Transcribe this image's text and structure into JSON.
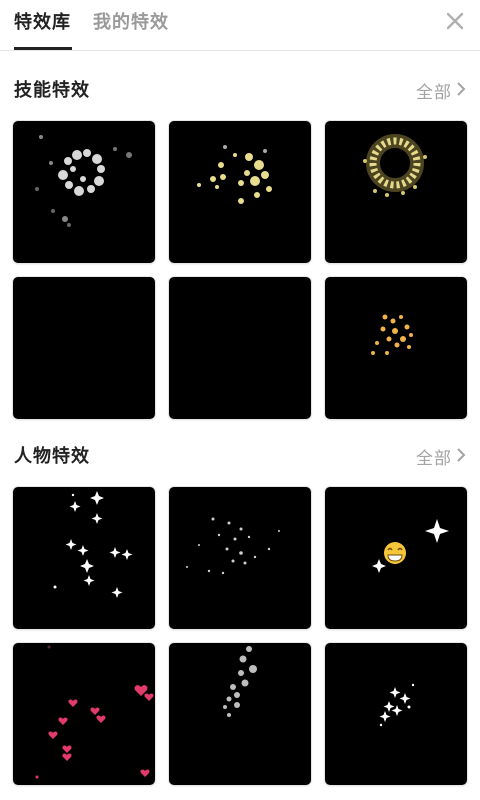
{
  "tabs": [
    {
      "label": "特效库",
      "active": true
    },
    {
      "label": "我的特效",
      "active": false
    }
  ],
  "close_icon": "close-icon",
  "sections": [
    {
      "title": "技能特效",
      "all_label": "全部",
      "items": [
        "skill-effect-1",
        "skill-effect-2",
        "skill-effect-3",
        "skill-effect-4",
        "skill-effect-5",
        "skill-effect-6"
      ]
    },
    {
      "title": "人物特效",
      "all_label": "全部",
      "items": [
        "character-effect-1",
        "character-effect-2",
        "character-effect-3",
        "character-effect-4",
        "character-effect-5",
        "character-effect-6"
      ]
    }
  ],
  "colors": {
    "accent": "#222222",
    "muted": "#9a9a9a",
    "tile_bg": "#000000",
    "gold": "#d9c77a",
    "amber": "#f2b24a",
    "pink": "#e23a6a"
  }
}
